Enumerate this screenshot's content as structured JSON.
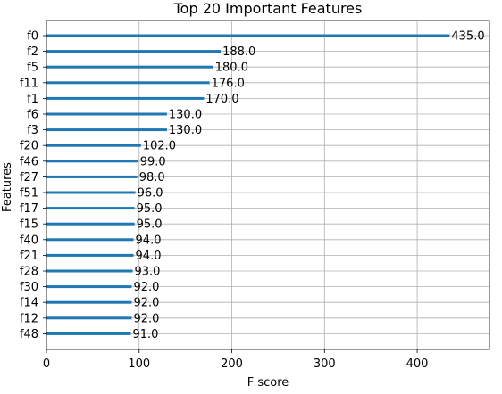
{
  "chart_data": {
    "type": "bar",
    "orientation": "horizontal",
    "title": "Top 20 Important Features",
    "xlabel": "F score",
    "ylabel": "Features",
    "xlim": [
      0,
      478
    ],
    "x_ticks": [
      0,
      100,
      200,
      300,
      400
    ],
    "grid": true,
    "color": "#1f77b4",
    "categories": [
      "f0",
      "f2",
      "f5",
      "f11",
      "f1",
      "f6",
      "f3",
      "f20",
      "f46",
      "f27",
      "f51",
      "f17",
      "f15",
      "f40",
      "f21",
      "f28",
      "f30",
      "f14",
      "f12",
      "f48"
    ],
    "values": [
      435,
      188,
      180,
      176,
      170,
      130,
      130,
      102,
      99,
      98,
      96,
      95,
      95,
      94,
      94,
      93,
      92,
      92,
      92,
      91
    ],
    "value_labels": [
      "435.0",
      "188.0",
      "180.0",
      "176.0",
      "170.0",
      "130.0",
      "130.0",
      "102.0",
      "99.0",
      "98.0",
      "96.0",
      "95.0",
      "95.0",
      "94.0",
      "94.0",
      "93.0",
      "92.0",
      "92.0",
      "92.0",
      "91.0"
    ]
  }
}
